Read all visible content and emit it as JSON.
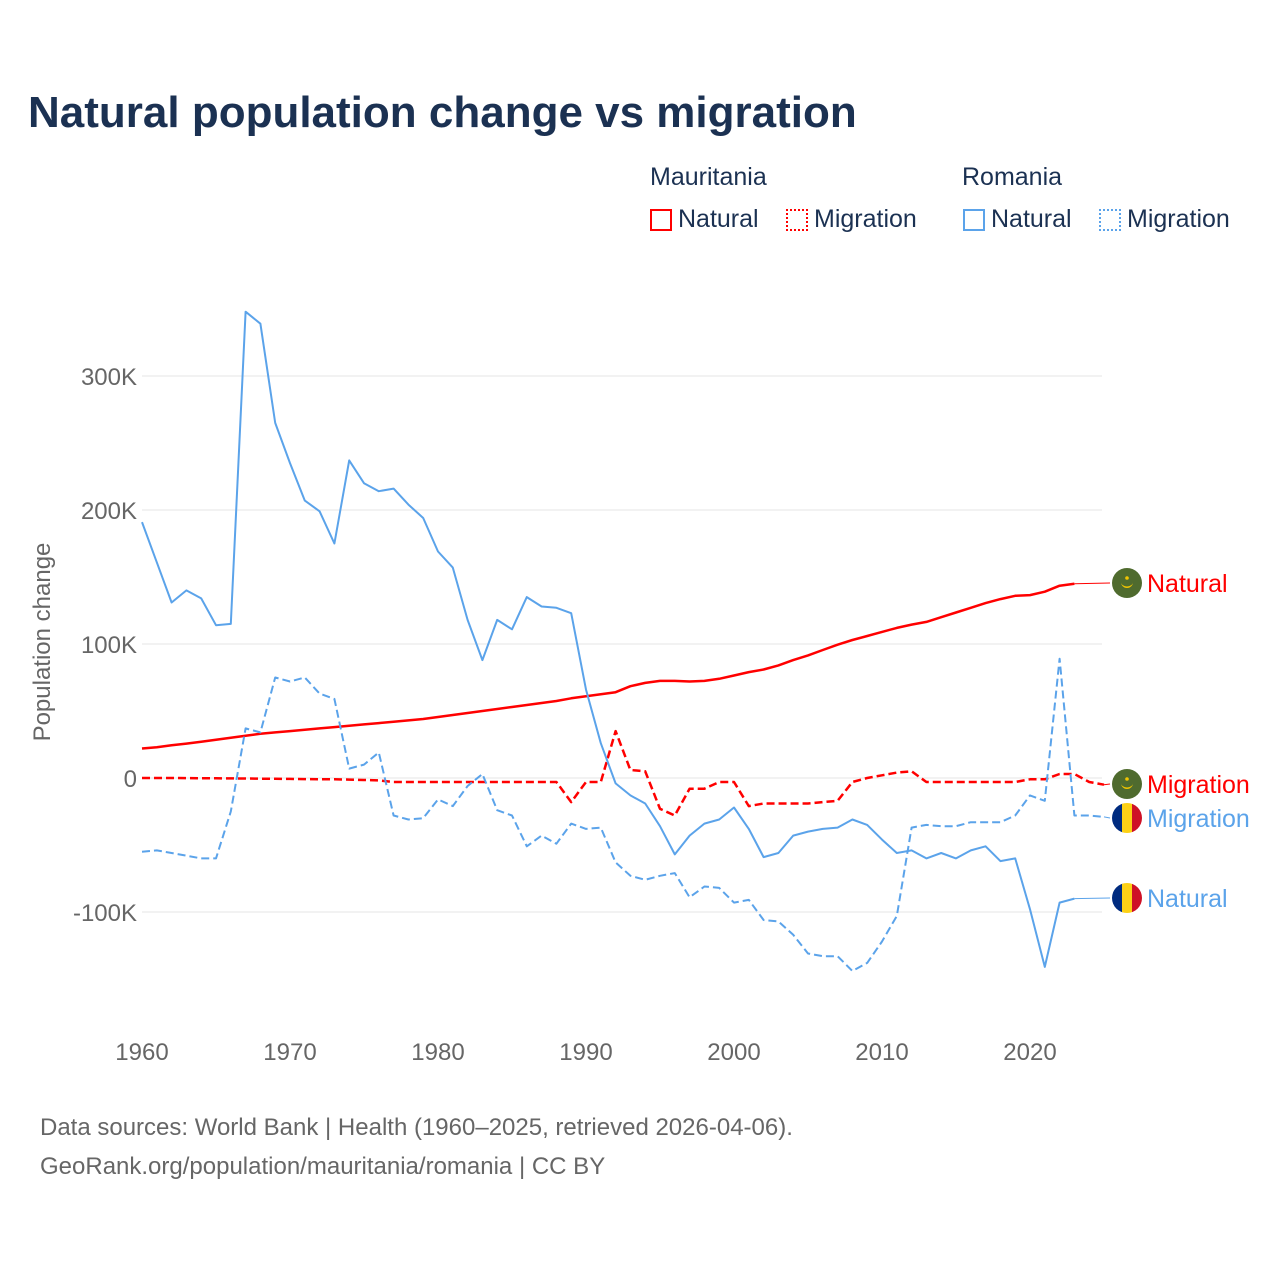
{
  "chart_data": {
    "type": "line",
    "title": "Natural population change vs migration",
    "xlabel": "",
    "ylabel": "Population change",
    "xlim": [
      1960,
      2025
    ],
    "ylim": [
      -170000,
      350000
    ],
    "y_ticks": [
      {
        "v": 300000,
        "label": "300K"
      },
      {
        "v": 200000,
        "label": "200K"
      },
      {
        "v": 100000,
        "label": "100K"
      },
      {
        "v": 0,
        "label": "0"
      },
      {
        "v": -100000,
        "label": "-100K"
      }
    ],
    "x_ticks": [
      {
        "v": 1960,
        "label": "1960"
      },
      {
        "v": 1970,
        "label": "1970"
      },
      {
        "v": 1980,
        "label": "1980"
      },
      {
        "v": 1990,
        "label": "1990"
      },
      {
        "v": 2000,
        "label": "2000"
      },
      {
        "v": 2010,
        "label": "2010"
      },
      {
        "v": 2020,
        "label": "2020"
      }
    ],
    "grid": true,
    "legend_placement": "top-right",
    "legend": {
      "groups": [
        "Mauritania",
        "Romania"
      ],
      "items": [
        "Natural",
        "Migration",
        "Natural",
        "Migration"
      ]
    },
    "series": [
      {
        "name": "Mauritania Natural",
        "country": "Mauritania",
        "kind": "Natural",
        "color": "#ff0000",
        "dashed": false,
        "start": 1960,
        "values": [
          22,
          23,
          24.5,
          25.7,
          27,
          28.5,
          30,
          31.5,
          33,
          34,
          35,
          36,
          37,
          38,
          39,
          40,
          41,
          42,
          43,
          44,
          45.5,
          47,
          48.5,
          50,
          51.5,
          53,
          54.5,
          56,
          57.5,
          59.5,
          61,
          62.5,
          64,
          68.5,
          71,
          72.5,
          72.5,
          72,
          72.5,
          74,
          76.5,
          79,
          81,
          84,
          88,
          91.5,
          95.5,
          99.5,
          103,
          106,
          109,
          112,
          114.5,
          116.5,
          120,
          123.5,
          127,
          130.5,
          133.5,
          136,
          136.5,
          139,
          143.5,
          145
        ],
        "end_label": "Natural"
      },
      {
        "name": "Mauritania Migration",
        "country": "Mauritania",
        "kind": "Migration",
        "color": "#ff0000",
        "dashed": true,
        "start": 1960,
        "values": [
          0,
          0,
          0,
          -0.1,
          -0.2,
          -0.2,
          -0.3,
          -0.4,
          -0.5,
          -0.6,
          -0.7,
          -0.8,
          -0.9,
          -1,
          -1.2,
          -1.5,
          -1.8,
          -3,
          -3,
          -3,
          -3,
          -3,
          -3,
          -3,
          -3,
          -3,
          -3,
          -3,
          -3,
          -18,
          -3,
          -3,
          35,
          6,
          5,
          -23,
          -28,
          -8,
          -8,
          -3,
          -3,
          -21,
          -19,
          -19,
          -19,
          -19,
          -18,
          -17,
          -3,
          0,
          2,
          4,
          5,
          -3,
          -3,
          -3,
          -3,
          -3,
          -3,
          -3,
          -1,
          -1,
          3,
          3,
          -3,
          -5
        ],
        "end_label": "Migration"
      },
      {
        "name": "Romania Natural",
        "country": "Romania",
        "kind": "Natural",
        "color": "#5ba3ea",
        "dashed": false,
        "start": 1960,
        "values": [
          191,
          161,
          131,
          140,
          134,
          114,
          115,
          348,
          339,
          265,
          235,
          207,
          199,
          175,
          237,
          220,
          214,
          216,
          204,
          194,
          169,
          157,
          118,
          88,
          118,
          111,
          135,
          128,
          127,
          123,
          66,
          26,
          -4,
          -13,
          -19,
          -36,
          -57,
          -43,
          -34,
          -31,
          -22,
          -38,
          -59,
          -56,
          -43,
          -40,
          -38,
          -37,
          -31,
          -35,
          -46,
          -56,
          -54,
          -60,
          -56,
          -60,
          -54,
          -51,
          -62,
          -60,
          -98,
          -141,
          -93,
          -90
        ],
        "end_label": "Natural"
      },
      {
        "name": "Romania Migration",
        "country": "Romania",
        "kind": "Migration",
        "color": "#5ba3ea",
        "dashed": true,
        "start": 1960,
        "values": [
          -55,
          -54,
          -56,
          -58,
          -60,
          -60,
          -25,
          37,
          34,
          75,
          72,
          75,
          63,
          59,
          7,
          10,
          19,
          -28,
          -31,
          -30,
          -16,
          -21,
          -6,
          3,
          -24,
          -28,
          -51,
          -43,
          -49,
          -34,
          -38,
          -37,
          -63,
          -73,
          -76,
          -73,
          -71,
          -89,
          -81,
          -82,
          -93,
          -91,
          -106,
          -107,
          -117,
          -131,
          -133,
          -133,
          -144,
          -138,
          -122,
          -103,
          -37,
          -35,
          -36,
          -36,
          -33,
          -33,
          -33,
          -28,
          -13,
          -17,
          89,
          -28,
          -28,
          -29
        ],
        "end_label": "Migration"
      }
    ],
    "value_unit": "thousands"
  },
  "source": {
    "line1": "Data sources: World Bank | Health (1960–2025, retrieved 2026-04-06).",
    "line2": "GeoRank.org/population/mauritania/romania | CC BY"
  }
}
